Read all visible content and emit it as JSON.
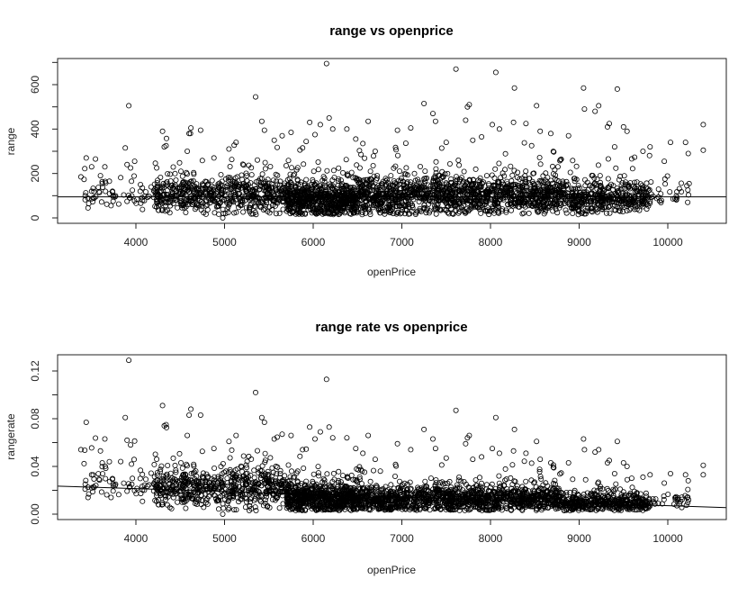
{
  "chart_data": [
    {
      "type": "scatter",
      "title": "range vs openprice",
      "xlabel": "openPrice",
      "ylabel": "range",
      "xlim": [
        3100,
        10700
      ],
      "ylim": [
        -25,
        710
      ],
      "xticks": [
        4000,
        5000,
        6000,
        7000,
        8000,
        9000,
        10000
      ],
      "yticks": [
        0,
        200,
        400,
        600
      ],
      "yminor_ticks": [
        100,
        300,
        500,
        700
      ],
      "grid": false,
      "legend": null,
      "marker": "open-circle",
      "reference_line": {
        "type": "horizontal",
        "y": 95
      },
      "bulk_bands": [
        {
          "x_from": 3400,
          "x_to": 4200,
          "y_center": 95,
          "y_spread": 60,
          "n": 60
        },
        {
          "x_from": 4200,
          "x_to": 5700,
          "y_center": 100,
          "y_spread": 70,
          "n": 600
        },
        {
          "x_from": 5700,
          "x_to": 6500,
          "y_center": 80,
          "y_spread": 70,
          "n": 700
        },
        {
          "x_from": 6500,
          "x_to": 8800,
          "y_center": 95,
          "y_spread": 75,
          "n": 1300
        },
        {
          "x_from": 8800,
          "x_to": 9800,
          "y_center": 85,
          "y_spread": 60,
          "n": 450
        },
        {
          "x_from": 9800,
          "x_to": 10250,
          "y_center": 110,
          "y_spread": 45,
          "n": 30
        }
      ],
      "outliers": [
        [
          3380,
          185
        ],
        [
          3440,
          270
        ],
        [
          3460,
          45
        ],
        [
          3500,
          120
        ],
        [
          3600,
          190
        ],
        [
          3620,
          155
        ],
        [
          3650,
          230
        ],
        [
          3700,
          165
        ],
        [
          3720,
          55
        ],
        [
          3880,
          315
        ],
        [
          3900,
          240
        ],
        [
          3920,
          505
        ],
        [
          3940,
          225
        ],
        [
          3950,
          165
        ],
        [
          3960,
          125
        ],
        [
          4300,
          390
        ],
        [
          4320,
          320
        ],
        [
          4340,
          325
        ],
        [
          4580,
          300
        ],
        [
          4600,
          380
        ],
        [
          4620,
          405
        ],
        [
          4730,
          395
        ],
        [
          4880,
          270
        ],
        [
          4980,
          0
        ],
        [
          5050,
          310
        ],
        [
          5130,
          340
        ],
        [
          5350,
          545
        ],
        [
          5420,
          435
        ],
        [
          5450,
          395
        ],
        [
          5560,
          350
        ],
        [
          5650,
          370
        ],
        [
          5750,
          385
        ],
        [
          5880,
          315
        ],
        [
          5960,
          430
        ],
        [
          6020,
          375
        ],
        [
          6080,
          420
        ],
        [
          6150,
          695
        ],
        [
          6180,
          450
        ],
        [
          6220,
          400
        ],
        [
          6380,
          400
        ],
        [
          6480,
          355
        ],
        [
          6560,
          335
        ],
        [
          6620,
          435
        ],
        [
          6700,
          300
        ],
        [
          6950,
          395
        ],
        [
          7100,
          405
        ],
        [
          7250,
          515
        ],
        [
          7350,
          470
        ],
        [
          7380,
          435
        ],
        [
          7500,
          340
        ],
        [
          7610,
          670
        ],
        [
          7720,
          440
        ],
        [
          7740,
          500
        ],
        [
          7760,
          510
        ],
        [
          7800,
          350
        ],
        [
          7900,
          365
        ],
        [
          8020,
          420
        ],
        [
          8060,
          655
        ],
        [
          8100,
          400
        ],
        [
          8260,
          430
        ],
        [
          8270,
          585
        ],
        [
          8400,
          425
        ],
        [
          8520,
          505
        ],
        [
          8560,
          390
        ],
        [
          8680,
          380
        ],
        [
          8880,
          370
        ],
        [
          9050,
          585
        ],
        [
          9060,
          490
        ],
        [
          9180,
          480
        ],
        [
          9220,
          505
        ],
        [
          9320,
          410
        ],
        [
          9340,
          425
        ],
        [
          9400,
          320
        ],
        [
          9430,
          580
        ],
        [
          9500,
          410
        ],
        [
          9540,
          390
        ],
        [
          9720,
          300
        ],
        [
          9800,
          320
        ],
        [
          9960,
          255
        ],
        [
          10030,
          340
        ],
        [
          10200,
          340
        ],
        [
          10230,
          290
        ],
        [
          10400,
          420
        ],
        [
          10400,
          305
        ]
      ]
    },
    {
      "type": "scatter",
      "title": "range rate vs openprice",
      "xlabel": "openPrice",
      "ylabel": "rangerate",
      "xlim": [
        3100,
        10700
      ],
      "ylim": [
        -0.004,
        0.134
      ],
      "xticks": [
        4000,
        5000,
        6000,
        7000,
        8000,
        9000,
        10000
      ],
      "yticks": [
        0.0,
        0.04,
        0.08,
        0.12
      ],
      "ytick_labels": [
        "0.00",
        "0.04",
        "0.08",
        "0.12"
      ],
      "yminor_ticks": [
        0.02,
        0.06,
        0.1
      ],
      "grid": false,
      "legend": null,
      "marker": "open-circle",
      "reference_line": {
        "type": "linear",
        "x0": 3100,
        "y0": 0.0235,
        "x1": 10700,
        "y1": 0.0055
      },
      "bulk_bands": [
        {
          "x_from": 3400,
          "x_to": 4200,
          "y_center": 0.024,
          "y_spread": 0.014,
          "n": 60
        },
        {
          "x_from": 4200,
          "x_to": 5700,
          "y_center": 0.021,
          "y_spread": 0.014,
          "n": 600
        },
        {
          "x_from": 5700,
          "x_to": 6500,
          "y_center": 0.013,
          "y_spread": 0.011,
          "n": 700
        },
        {
          "x_from": 6500,
          "x_to": 8800,
          "y_center": 0.012,
          "y_spread": 0.01,
          "n": 1300
        },
        {
          "x_from": 8800,
          "x_to": 9800,
          "y_center": 0.009,
          "y_spread": 0.007,
          "n": 450
        },
        {
          "x_from": 9800,
          "x_to": 10250,
          "y_center": 0.012,
          "y_spread": 0.005,
          "n": 30
        }
      ],
      "outliers": [
        [
          3380,
          0.054
        ],
        [
          3440,
          0.077
        ],
        [
          3460,
          0.014
        ],
        [
          3500,
          0.033
        ],
        [
          3600,
          0.053
        ],
        [
          3620,
          0.043
        ],
        [
          3650,
          0.063
        ],
        [
          3700,
          0.044
        ],
        [
          3720,
          0.014
        ],
        [
          3880,
          0.081
        ],
        [
          3900,
          0.062
        ],
        [
          3920,
          0.129
        ],
        [
          3940,
          0.058
        ],
        [
          3950,
          0.042
        ],
        [
          3960,
          0.03
        ],
        [
          4300,
          0.091
        ],
        [
          4320,
          0.074
        ],
        [
          4340,
          0.075
        ],
        [
          4580,
          0.066
        ],
        [
          4600,
          0.083
        ],
        [
          4620,
          0.088
        ],
        [
          4730,
          0.083
        ],
        [
          4880,
          0.055
        ],
        [
          4980,
          0.0
        ],
        [
          5050,
          0.061
        ],
        [
          5130,
          0.066
        ],
        [
          5350,
          0.102
        ],
        [
          5420,
          0.081
        ],
        [
          5450,
          0.077
        ],
        [
          5560,
          0.063
        ],
        [
          5650,
          0.067
        ],
        [
          5750,
          0.066
        ],
        [
          5880,
          0.054
        ],
        [
          5960,
          0.073
        ],
        [
          6020,
          0.063
        ],
        [
          6080,
          0.069
        ],
        [
          6150,
          0.113
        ],
        [
          6180,
          0.073
        ],
        [
          6220,
          0.064
        ],
        [
          6380,
          0.064
        ],
        [
          6480,
          0.055
        ],
        [
          6560,
          0.051
        ],
        [
          6620,
          0.066
        ],
        [
          6700,
          0.046
        ],
        [
          6950,
          0.059
        ],
        [
          7100,
          0.054
        ],
        [
          7250,
          0.071
        ],
        [
          7350,
          0.063
        ],
        [
          7380,
          0.055
        ],
        [
          7500,
          0.047
        ],
        [
          7610,
          0.087
        ],
        [
          7720,
          0.059
        ],
        [
          7740,
          0.064
        ],
        [
          7760,
          0.066
        ],
        [
          7800,
          0.046
        ],
        [
          7900,
          0.048
        ],
        [
          8020,
          0.055
        ],
        [
          8060,
          0.081
        ],
        [
          8100,
          0.051
        ],
        [
          8260,
          0.053
        ],
        [
          8270,
          0.071
        ],
        [
          8400,
          0.051
        ],
        [
          8520,
          0.061
        ],
        [
          8560,
          0.046
        ],
        [
          8680,
          0.043
        ],
        [
          8880,
          0.043
        ],
        [
          9050,
          0.063
        ],
        [
          9060,
          0.054
        ],
        [
          9180,
          0.052
        ],
        [
          9220,
          0.054
        ],
        [
          9320,
          0.043
        ],
        [
          9340,
          0.045
        ],
        [
          9400,
          0.034
        ],
        [
          9430,
          0.061
        ],
        [
          9500,
          0.043
        ],
        [
          9540,
          0.04
        ],
        [
          9720,
          0.031
        ],
        [
          9800,
          0.033
        ],
        [
          9960,
          0.026
        ],
        [
          10030,
          0.034
        ],
        [
          10200,
          0.033
        ],
        [
          10230,
          0.028
        ],
        [
          10400,
          0.041
        ],
        [
          10400,
          0.033
        ]
      ]
    }
  ],
  "plots": [
    {
      "title": "range vs openprice",
      "xlabel": "openPrice",
      "ylabel": "range",
      "xtick_labels": [
        "4000",
        "5000",
        "6000",
        "7000",
        "8000",
        "9000",
        "10000"
      ],
      "ytick_labels": [
        "0",
        "200",
        "400",
        "600"
      ]
    },
    {
      "title": "range rate vs openprice",
      "xlabel": "openPrice",
      "ylabel": "rangerate",
      "xtick_labels": [
        "4000",
        "5000",
        "6000",
        "7000",
        "8000",
        "9000",
        "10000"
      ],
      "ytick_labels": [
        "0.00",
        "0.04",
        "0.08",
        "0.12"
      ]
    }
  ],
  "colors": {
    "marker_stroke": "#000000",
    "axis": "#222222",
    "background": "#ffffff"
  }
}
